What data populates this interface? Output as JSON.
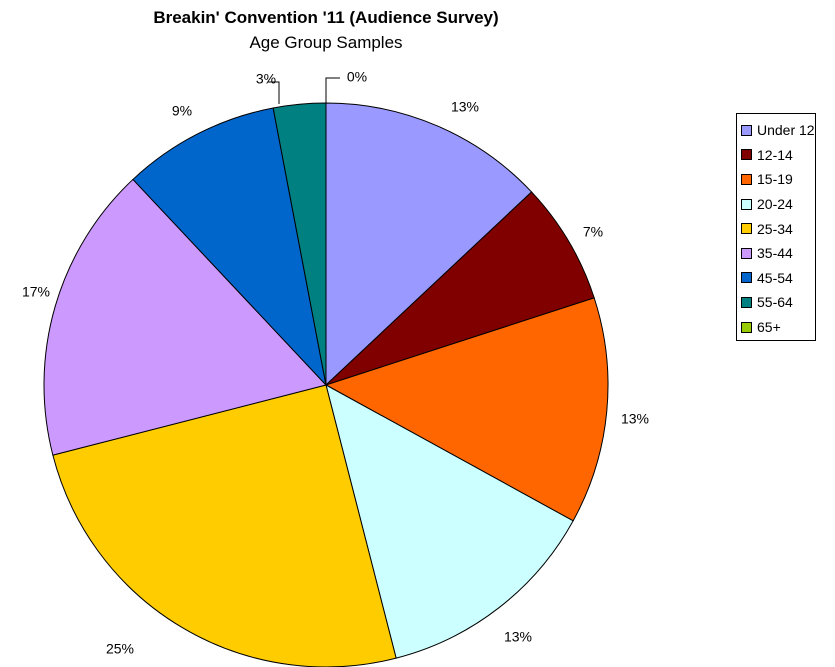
{
  "chart_data": {
    "type": "pie",
    "title": "Breakin' Convention '11 (Audience Survey)",
    "subtitle": "Age Group Samples",
    "slices": [
      {
        "label": "Under 12",
        "value": 13,
        "value_label": "13%",
        "color": "#9999FF"
      },
      {
        "label": "12-14",
        "value": 7,
        "value_label": "7%",
        "color": "#800000"
      },
      {
        "label": "15-19",
        "value": 13,
        "value_label": "13%",
        "color": "#FF6600"
      },
      {
        "label": "20-24",
        "value": 13,
        "value_label": "13%",
        "color": "#CCFFFF"
      },
      {
        "label": "25-34",
        "value": 25,
        "value_label": "25%",
        "color": "#FFCC00"
      },
      {
        "label": "35-44",
        "value": 17,
        "value_label": "17%",
        "color": "#CC99FF"
      },
      {
        "label": "45-54",
        "value": 9,
        "value_label": "9%",
        "color": "#0066CC"
      },
      {
        "label": "55-64",
        "value": 3,
        "value_label": "3%",
        "color": "#008080"
      },
      {
        "label": "65+",
        "value": 0,
        "value_label": "0%",
        "color": "#99CC00"
      }
    ],
    "legend_position": "right"
  }
}
